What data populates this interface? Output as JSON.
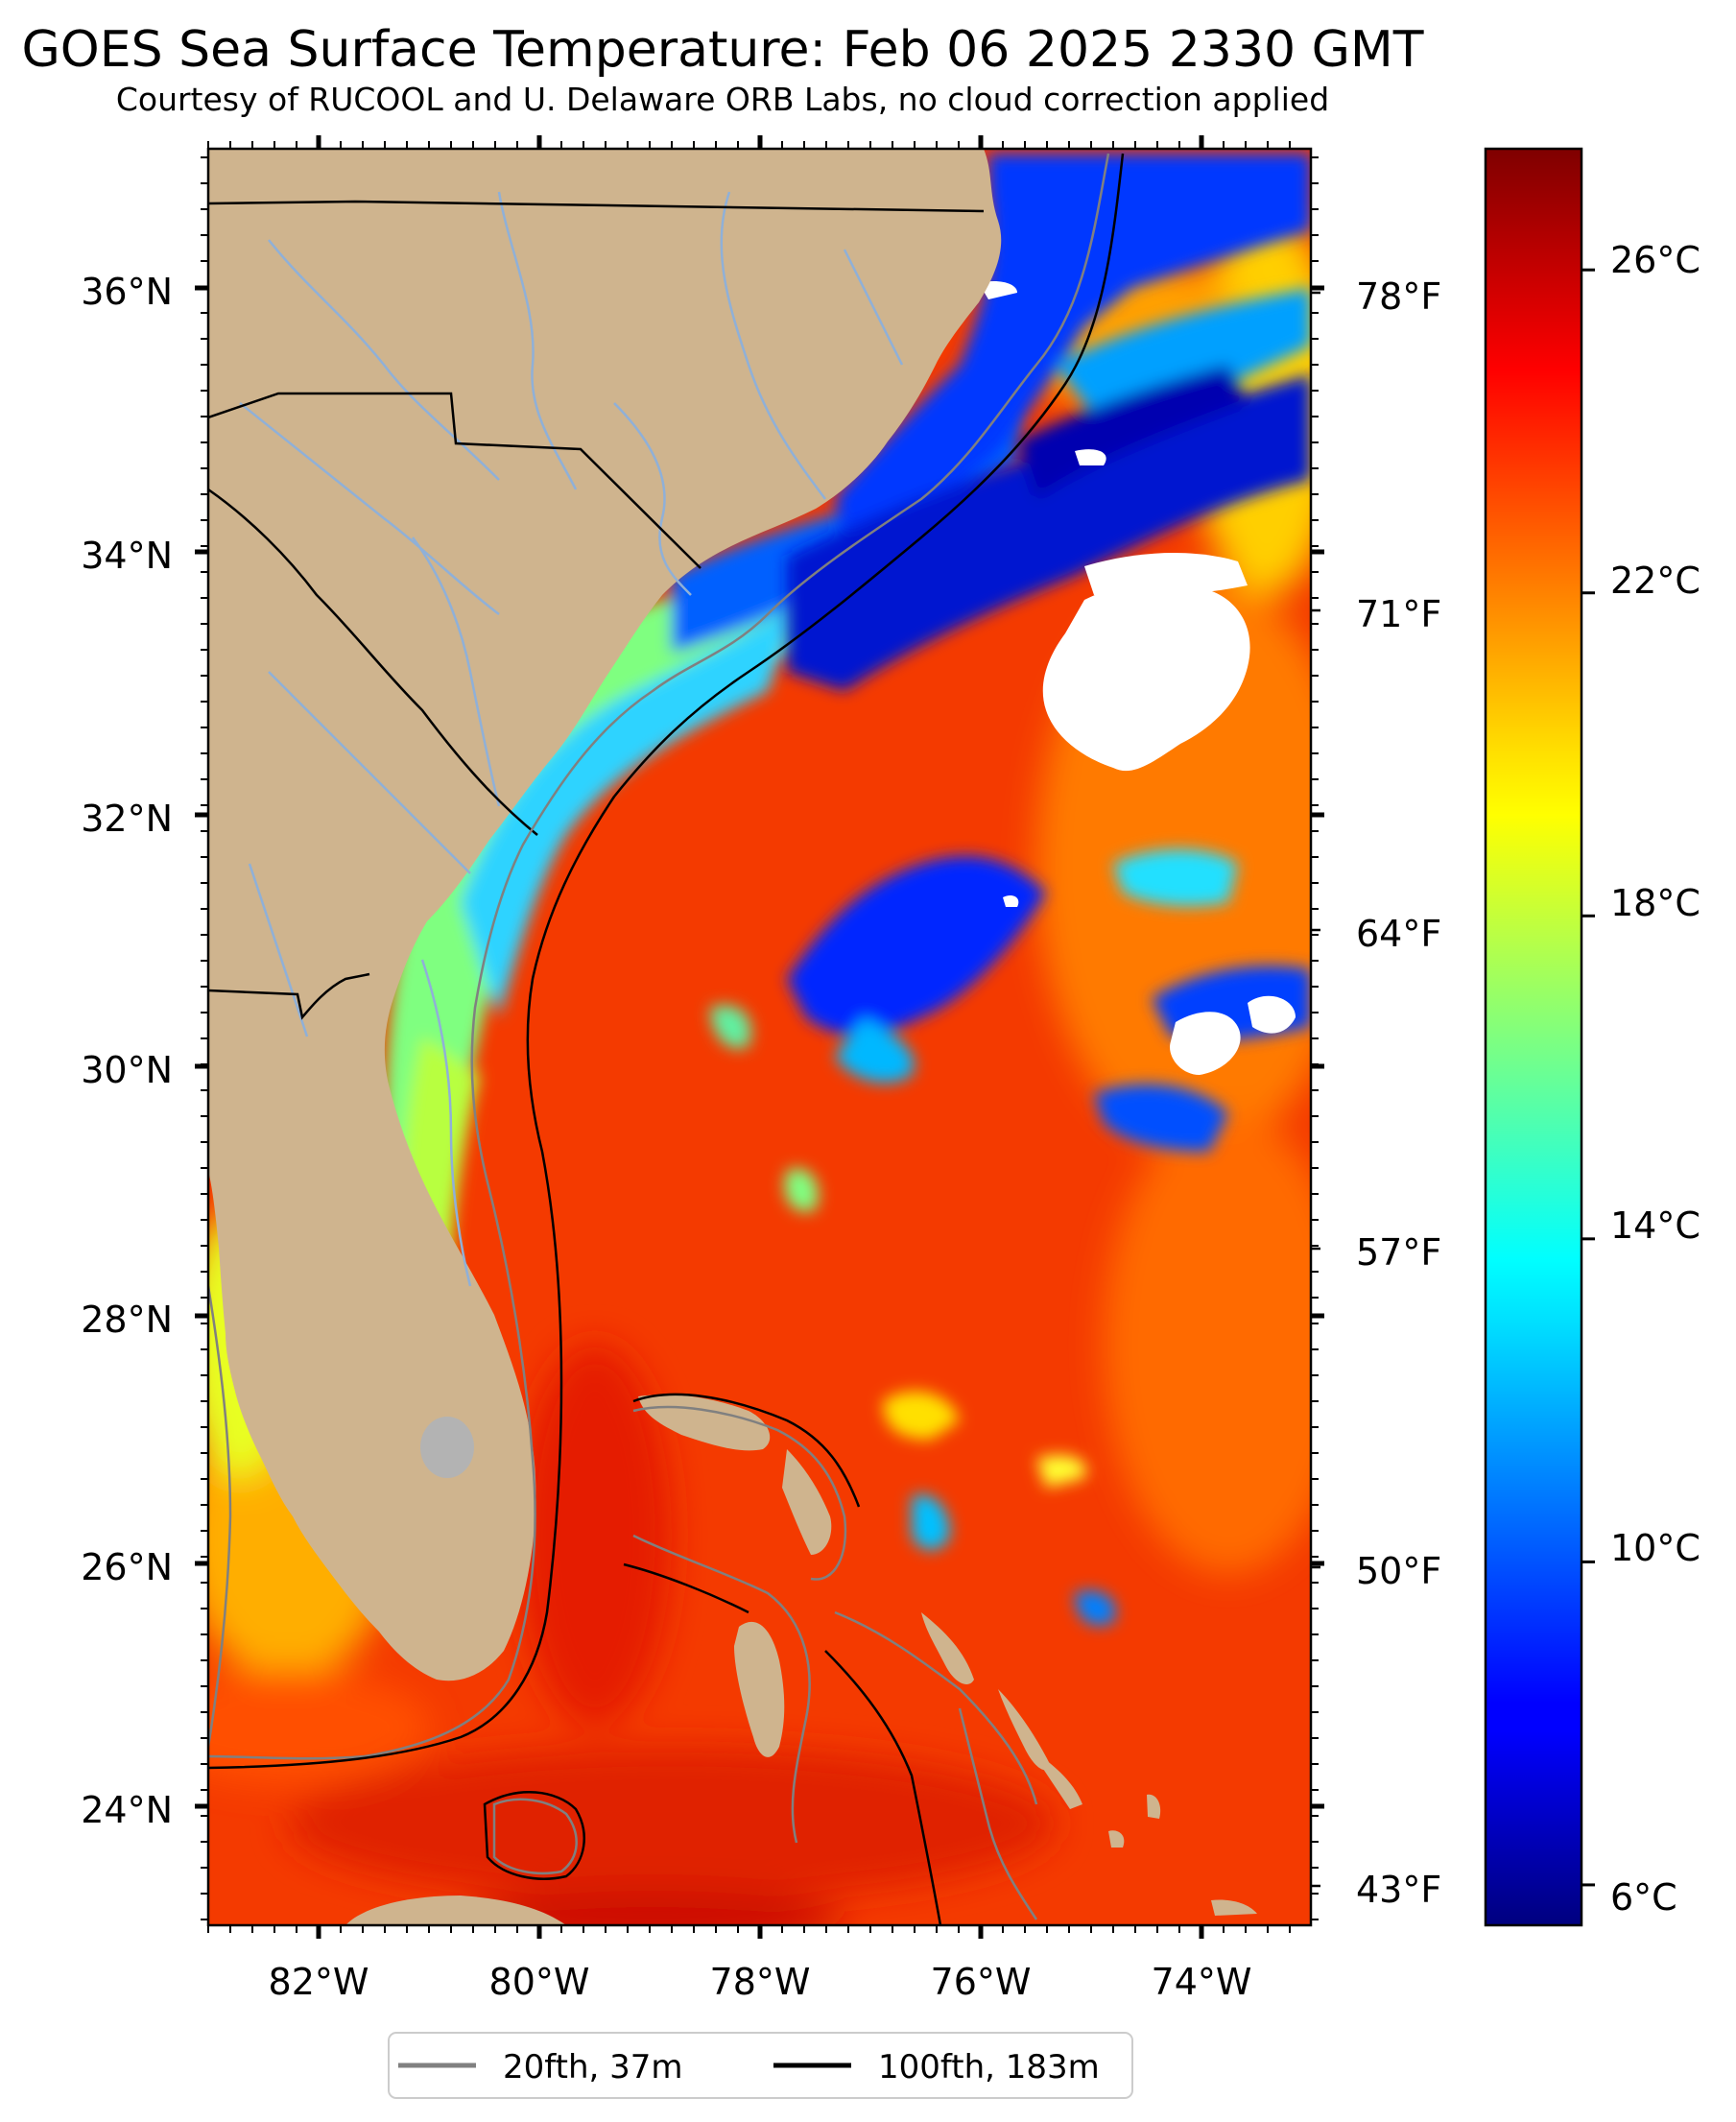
{
  "title": "GOES Sea Surface Temperature: Feb 06 2025 2330 GMT",
  "subtitle": "Courtesy of RUCOOL and U. Delaware ORB Labs, no cloud correction applied",
  "map": {
    "lat_range": [
      23.1,
      37.0
    ],
    "lon_range": [
      -83.0,
      -73.0
    ],
    "lat_ticks": [
      "36°N",
      "34°N",
      "32°N",
      "30°N",
      "28°N",
      "26°N",
      "24°N"
    ],
    "lon_ticks": [
      "82°W",
      "80°W",
      "78°W",
      "76°W",
      "74°W"
    ],
    "fahrenheit_ticks": [
      "78°F",
      "71°F",
      "64°F",
      "57°F",
      "50°F",
      "43°F"
    ]
  },
  "colorbar": {
    "colormap": "jet",
    "range_c": [
      5.5,
      27.5
    ],
    "ticks": [
      "26°C",
      "22°C",
      "18°C",
      "14°C",
      "10°C",
      "6°C"
    ],
    "tick_values_c": [
      26,
      22,
      18,
      14,
      10,
      6
    ]
  },
  "legend": {
    "items": [
      {
        "label": "20fth, 37m",
        "color": "#808080"
      },
      {
        "label": "100fth, 183m",
        "color": "#000000"
      }
    ]
  },
  "colors": {
    "land": "#cfb48e",
    "cloud": "#ffffff",
    "rivers": "#8fb0d8",
    "lake": "#b3b3b3",
    "fth20": "#808080",
    "fth100": "#000000"
  }
}
